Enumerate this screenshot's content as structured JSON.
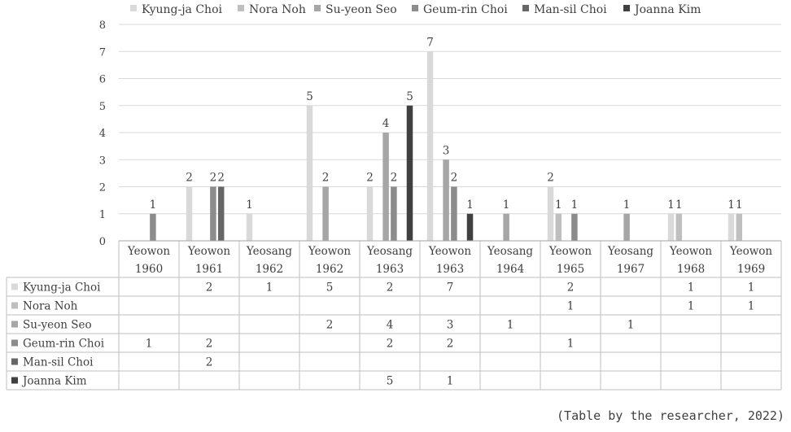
{
  "caption": "(Table by the researcher, 2022)",
  "chart_data": {
    "type": "bar",
    "categories": [
      {
        "label": "Yeowon",
        "year": "1960"
      },
      {
        "label": "Yeowon",
        "year": "1961"
      },
      {
        "label": "Yeosang",
        "year": "1962"
      },
      {
        "label": "Yeowon",
        "year": "1962"
      },
      {
        "label": "Yeosang",
        "year": "1963"
      },
      {
        "label": "Yeowon",
        "year": "1963"
      },
      {
        "label": "Yeosang",
        "year": "1964"
      },
      {
        "label": "Yeowon",
        "year": "1965"
      },
      {
        "label": "Yeosang",
        "year": "1967"
      },
      {
        "label": "Yeowon",
        "year": "1968"
      },
      {
        "label": "Yeowon",
        "year": "1969"
      }
    ],
    "series": [
      {
        "name": "Kyung-ja Choi",
        "color": "#d9d9d9",
        "values": [
          null,
          2,
          1,
          5,
          2,
          7,
          null,
          2,
          null,
          1,
          1
        ]
      },
      {
        "name": "Nora Noh",
        "color": "#bfbfbf",
        "values": [
          null,
          null,
          null,
          null,
          null,
          null,
          null,
          1,
          null,
          1,
          1
        ]
      },
      {
        "name": "Su-yeon Seo",
        "color": "#a6a6a6",
        "values": [
          null,
          null,
          null,
          2,
          4,
          3,
          1,
          null,
          1,
          null,
          null
        ]
      },
      {
        "name": "Geum-rin Choi",
        "color": "#8c8c8c",
        "values": [
          1,
          2,
          null,
          null,
          2,
          2,
          null,
          1,
          null,
          null,
          null
        ]
      },
      {
        "name": "Man-sil Choi",
        "color": "#666666",
        "values": [
          null,
          2,
          null,
          null,
          null,
          null,
          null,
          null,
          null,
          null,
          null
        ]
      },
      {
        "name": "Joanna Kim",
        "color": "#404040",
        "values": [
          null,
          null,
          null,
          null,
          5,
          1,
          null,
          null,
          null,
          null,
          null
        ]
      }
    ],
    "ylim": [
      0,
      8
    ],
    "yticks": [
      0,
      1,
      2,
      3,
      4,
      5,
      6,
      7,
      8
    ],
    "gridlines": true,
    "legend": "top",
    "data_table": true
  }
}
